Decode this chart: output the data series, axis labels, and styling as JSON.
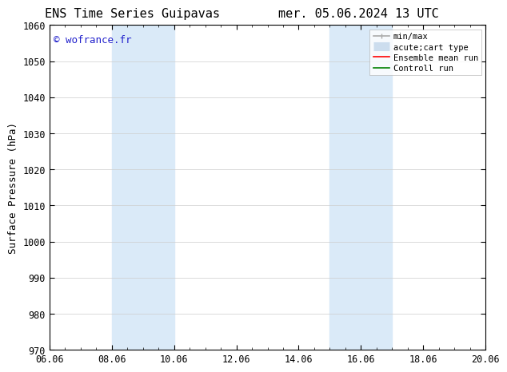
{
  "title_left": "ENS Time Series Guipavas",
  "title_right": "mer. 05.06.2024 13 UTC",
  "ylabel": "Surface Pressure (hPa)",
  "ylim": [
    970,
    1060
  ],
  "yticks": [
    970,
    980,
    990,
    1000,
    1010,
    1020,
    1030,
    1040,
    1050,
    1060
  ],
  "xticks": [
    6.06,
    8.06,
    10.06,
    12.06,
    14.06,
    16.06,
    18.06,
    20.06
  ],
  "xlim": [
    6.06,
    20.06
  ],
  "bg_color": "#ffffff",
  "plot_bg_color": "#ffffff",
  "shaded_bands": [
    {
      "xmin": 8.06,
      "xmax": 10.06,
      "color": "#daeaf8"
    },
    {
      "xmin": 15.06,
      "xmax": 17.06,
      "color": "#daeaf8"
    }
  ],
  "watermark_text": "© wofrance.fr",
  "watermark_color": "#2222cc",
  "legend_entries": [
    {
      "label": "min/max",
      "color": "#aaaaaa",
      "lw": 1.2
    },
    {
      "label": "acute;cart type",
      "color": "#ccddee",
      "lw": 8
    },
    {
      "label": "Ensemble mean run",
      "color": "#ff0000",
      "lw": 1.2
    },
    {
      "label": "Controll run",
      "color": "#008000",
      "lw": 1.2
    }
  ],
  "grid_color": "#cccccc",
  "grid_lw": 0.5,
  "tick_label_fontsize": 8.5,
  "axis_label_fontsize": 9,
  "title_fontsize": 11
}
